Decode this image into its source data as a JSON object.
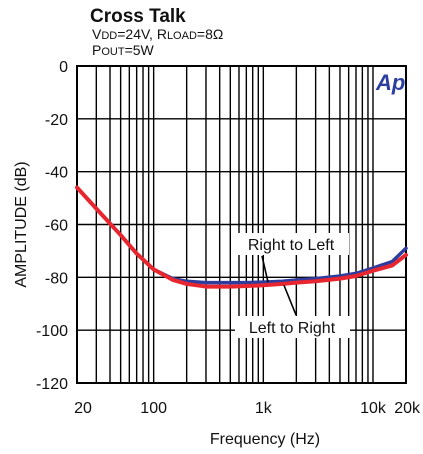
{
  "chart_data": {
    "type": "line",
    "title": "Cross Talk",
    "conditions": [
      {
        "segments": [
          {
            "t": "V",
            "sub": false
          },
          {
            "t": "DD",
            "sub": true
          },
          {
            "t": "=24V, R",
            "sub": false
          },
          {
            "t": "LOAD",
            "sub": true
          },
          {
            "t": "=8Ω",
            "sub": false
          }
        ]
      },
      {
        "segments": [
          {
            "t": "P",
            "sub": false
          },
          {
            "t": "OUT",
            "sub": true
          },
          {
            "t": "=5W",
            "sub": false
          }
        ]
      }
    ],
    "xlabel": "Frequency (Hz)",
    "ylabel": "AMPLITUDE (dB)",
    "xscale": "log",
    "xlim": [
      20,
      20000
    ],
    "ylim": [
      -120,
      0
    ],
    "grid": true,
    "x_ticks": [
      {
        "value": 20,
        "label": "20"
      },
      {
        "value": 100,
        "label": "100"
      },
      {
        "value": 1000,
        "label": "1k"
      },
      {
        "value": 10000,
        "label": "10k"
      },
      {
        "value": 20000,
        "label": "20k"
      }
    ],
    "y_ticks": [
      {
        "value": 0,
        "label": "0"
      },
      {
        "value": -20,
        "label": "-20"
      },
      {
        "value": -40,
        "label": "-40"
      },
      {
        "value": -60,
        "label": "-60"
      },
      {
        "value": -80,
        "label": "-80"
      },
      {
        "value": -100,
        "label": "-100"
      },
      {
        "value": -120,
        "label": "-120"
      }
    ],
    "series": [
      {
        "name": "Right to Left",
        "color": "#2e3c9e",
        "x": [
          20,
          30,
          50,
          70,
          100,
          150,
          200,
          300,
          500,
          700,
          1000,
          1500,
          2000,
          3000,
          5000,
          7000,
          10000,
          15000,
          20000
        ],
        "y": [
          -46,
          -54,
          -64,
          -71,
          -77,
          -80.5,
          -81.5,
          -82,
          -82,
          -82,
          -81.8,
          -81.5,
          -81,
          -80.5,
          -79.5,
          -78.5,
          -76.5,
          -74,
          -69
        ]
      },
      {
        "name": "Left to Right",
        "color": "#e8262f",
        "x": [
          20,
          30,
          50,
          70,
          100,
          150,
          200,
          300,
          500,
          700,
          1000,
          1500,
          2000,
          3000,
          5000,
          7000,
          10000,
          15000,
          20000
        ],
        "y": [
          -46,
          -54,
          -64,
          -71,
          -77,
          -81,
          -82.5,
          -83.5,
          -83.5,
          -83.3,
          -83,
          -82.5,
          -82,
          -81.5,
          -80.5,
          -79.5,
          -77.5,
          -75.5,
          -71.5
        ]
      }
    ],
    "annotations": [
      {
        "text": "Right to Left",
        "points_to": "Right to Left"
      },
      {
        "text": "Left to Right",
        "points_to": "Left to Right"
      }
    ],
    "logo": "Ap"
  }
}
